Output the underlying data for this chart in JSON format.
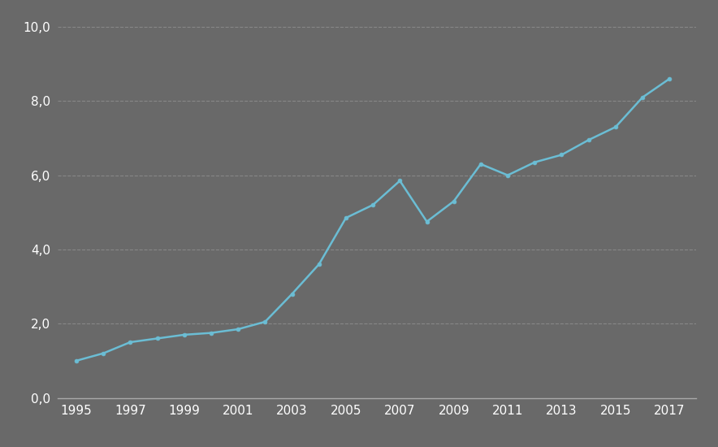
{
  "years": [
    1995,
    1996,
    1997,
    1998,
    1999,
    2000,
    2001,
    2002,
    2003,
    2004,
    2005,
    2006,
    2007,
    2008,
    2009,
    2010,
    2011,
    2012,
    2013,
    2014,
    2015,
    2016,
    2017
  ],
  "values": [
    1.0,
    1.2,
    1.5,
    1.6,
    1.7,
    1.75,
    1.85,
    2.05,
    2.8,
    3.6,
    4.85,
    5.2,
    5.85,
    4.75,
    5.3,
    6.3,
    6.0,
    6.35,
    6.55,
    6.95,
    7.3,
    8.1,
    8.6
  ],
  "background_color": "#696969",
  "line_color": "#6bbdd4",
  "marker_color": "#6bbdd4",
  "grid_color": "#888888",
  "tick_color": "#ffffff",
  "axis_color": "#aaaaaa",
  "ylim": [
    0,
    10
  ],
  "yticks": [
    0.0,
    2.0,
    4.0,
    6.0,
    8.0,
    10.0
  ],
  "ytick_labels": [
    "0,0",
    "2,0",
    "4,0",
    "6,0",
    "8,0",
    "10,0"
  ],
  "xtick_labels": [
    "1995",
    "1997",
    "1999",
    "2001",
    "2003",
    "2005",
    "2007",
    "2009",
    "2011",
    "2013",
    "2015",
    "2017"
  ],
  "line_width": 1.8,
  "marker_size": 3.5
}
